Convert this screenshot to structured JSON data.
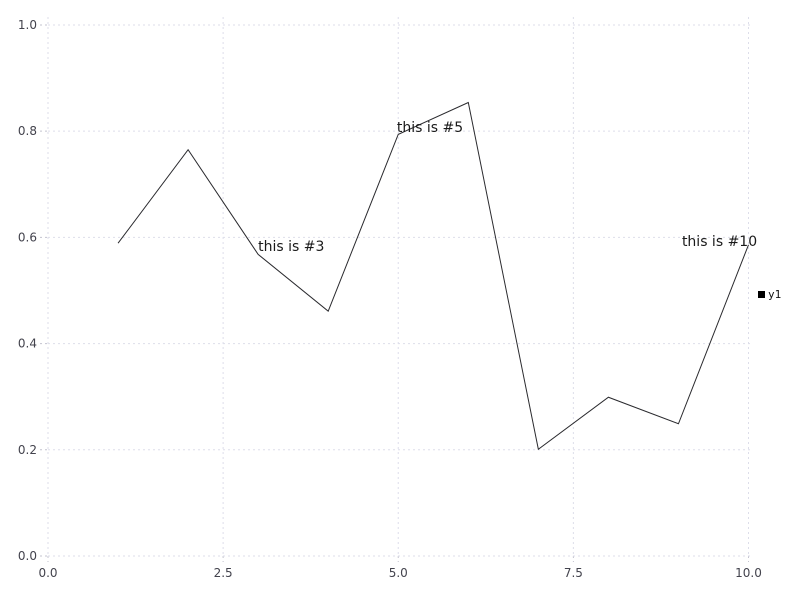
{
  "chart_data": {
    "type": "line",
    "title": "",
    "xlabel": "",
    "ylabel": "",
    "x": [
      1,
      2,
      3,
      4,
      5,
      6,
      7,
      8,
      9,
      10
    ],
    "series": [
      {
        "name": "y1",
        "values": [
          0.589,
          0.765,
          0.568,
          0.461,
          0.794,
          0.854,
          0.201,
          0.299,
          0.249,
          0.586
        ]
      }
    ],
    "annotations": [
      {
        "text": "this is #3",
        "x": 3.0,
        "y": 0.576
      },
      {
        "text": "this is #5",
        "x": 4.98,
        "y": 0.8
      },
      {
        "text": "this is #10",
        "x": 9.05,
        "y": 0.584
      }
    ],
    "x_ticks": {
      "values": [
        0,
        2.5,
        5,
        7.5,
        10
      ],
      "labels": [
        "0.0",
        "2.5",
        "5.0",
        "7.5",
        "10.0"
      ]
    },
    "y_ticks": {
      "values": [
        0,
        0.2,
        0.4,
        0.6,
        0.8,
        1.0
      ],
      "labels": [
        "0.0",
        "0.2",
        "0.4",
        "0.6",
        "0.8",
        "1.0"
      ]
    },
    "xlim": [
      0,
      10.05
    ],
    "ylim": [
      0,
      1.015
    ],
    "grid": "dashed",
    "legend": {
      "position": "outside-right",
      "entries": [
        {
          "label": "y1",
          "marker": "square",
          "color": "#000000"
        }
      ]
    },
    "colors": {
      "background": "#ffffff",
      "gridline": "#dddeea",
      "tick_mark": "#c3c3cf",
      "tick_label": "#43434d",
      "line": "#2a2a2e",
      "annotation": "#1a1a1a"
    }
  }
}
